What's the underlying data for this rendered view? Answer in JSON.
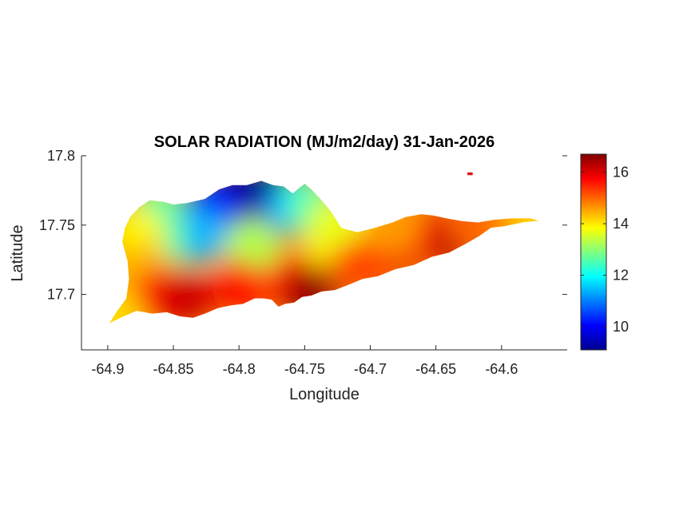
{
  "figure": {
    "title": "SOLAR RADIATION (MJ/m2/day) 31-Jan-2026"
  },
  "chart_data": {
    "type": "heatmap",
    "title": "SOLAR RADIATION (MJ/m2/day) 31-Jan-2026",
    "xlabel": "Longitude",
    "ylabel": "Latitude",
    "xlim": [
      -64.92,
      -64.55
    ],
    "ylim": [
      17.66,
      17.8
    ],
    "xticks": [
      -64.9,
      -64.85,
      -64.8,
      -64.75,
      -64.7,
      -64.65,
      -64.6
    ],
    "yticks": [
      17.7,
      17.75,
      17.8
    ],
    "xtick_labels": [
      "-64.9",
      "-64.85",
      "-64.8",
      "-64.75",
      "-64.7",
      "-64.65",
      "-64.6"
    ],
    "ytick_labels": [
      "17.7",
      "17.75",
      "17.8"
    ],
    "colormap": "jet",
    "clim": [
      9.1,
      16.7
    ],
    "colorbar_ticks": [
      10,
      12,
      14,
      16
    ],
    "colorbar_tick_labels": [
      "10",
      "12",
      "14",
      "16"
    ],
    "island_outline": [
      [
        -64.899,
        17.679
      ],
      [
        -64.893,
        17.688
      ],
      [
        -64.886,
        17.697
      ],
      [
        -64.884,
        17.711
      ],
      [
        -64.885,
        17.724
      ],
      [
        -64.889,
        17.738
      ],
      [
        -64.887,
        17.748
      ],
      [
        -64.883,
        17.756
      ],
      [
        -64.876,
        17.763
      ],
      [
        -64.868,
        17.768
      ],
      [
        -64.858,
        17.767
      ],
      [
        -64.85,
        17.765
      ],
      [
        -64.84,
        17.766
      ],
      [
        -64.826,
        17.769
      ],
      [
        -64.815,
        17.776
      ],
      [
        -64.805,
        17.779
      ],
      [
        -64.794,
        17.779
      ],
      [
        -64.783,
        17.782
      ],
      [
        -64.774,
        17.779
      ],
      [
        -64.766,
        17.778
      ],
      [
        -64.759,
        17.773
      ],
      [
        -64.754,
        17.777
      ],
      [
        -64.75,
        17.78
      ],
      [
        -64.745,
        17.776
      ],
      [
        -64.738,
        17.769
      ],
      [
        -64.73,
        17.76
      ],
      [
        -64.722,
        17.748
      ],
      [
        -64.71,
        17.745
      ],
      [
        -64.697,
        17.748
      ],
      [
        -64.683,
        17.752
      ],
      [
        -64.673,
        17.756
      ],
      [
        -64.661,
        17.758
      ],
      [
        -64.652,
        17.757
      ],
      [
        -64.642,
        17.755
      ],
      [
        -64.63,
        17.753
      ],
      [
        -64.618,
        17.752
      ],
      [
        -64.605,
        17.754
      ],
      [
        -64.592,
        17.755
      ],
      [
        -64.578,
        17.755
      ],
      [
        -64.571,
        17.753
      ],
      [
        -64.583,
        17.752
      ],
      [
        -64.598,
        17.749
      ],
      [
        -64.608,
        17.748
      ],
      [
        -64.617,
        17.742
      ],
      [
        -64.628,
        17.736
      ],
      [
        -64.64,
        17.73
      ],
      [
        -64.653,
        17.727
      ],
      [
        -64.667,
        17.721
      ],
      [
        -64.681,
        17.718
      ],
      [
        -64.694,
        17.713
      ],
      [
        -64.706,
        17.711
      ],
      [
        -64.716,
        17.707
      ],
      [
        -64.727,
        17.703
      ],
      [
        -64.737,
        17.702
      ],
      [
        -64.745,
        17.699
      ],
      [
        -64.752,
        17.698
      ],
      [
        -64.758,
        17.694
      ],
      [
        -64.765,
        17.693
      ],
      [
        -64.77,
        17.691
      ],
      [
        -64.775,
        17.696
      ],
      [
        -64.781,
        17.697
      ],
      [
        -64.788,
        17.697
      ],
      [
        -64.797,
        17.693
      ],
      [
        -64.806,
        17.692
      ],
      [
        -64.816,
        17.69
      ],
      [
        -64.826,
        17.686
      ],
      [
        -64.835,
        17.683
      ],
      [
        -64.845,
        17.684
      ],
      [
        -64.855,
        17.687
      ],
      [
        -64.866,
        17.686
      ],
      [
        -64.878,
        17.688
      ],
      [
        -64.888,
        17.684
      ]
    ],
    "offshore_islet": [
      [
        -64.626,
        17.788
      ],
      [
        -64.622,
        17.788
      ],
      [
        -64.622,
        17.786
      ],
      [
        -64.626,
        17.786
      ]
    ],
    "value_field": [
      {
        "lon": -64.8,
        "lat": 17.77,
        "value": 9.4
      },
      {
        "lon": -64.78,
        "lat": 17.772,
        "value": 9.2
      },
      {
        "lon": -64.82,
        "lat": 17.763,
        "value": 10.1
      },
      {
        "lon": -64.83,
        "lat": 17.742,
        "value": 11.4
      },
      {
        "lon": -64.76,
        "lat": 17.762,
        "value": 11.2
      },
      {
        "lon": -64.748,
        "lat": 17.766,
        "value": 12.1
      },
      {
        "lon": -64.74,
        "lat": 17.757,
        "value": 12.8
      },
      {
        "lon": -64.862,
        "lat": 17.76,
        "value": 12.6
      },
      {
        "lon": -64.86,
        "lat": 17.738,
        "value": 12.7
      },
      {
        "lon": -64.878,
        "lat": 17.744,
        "value": 13.9
      },
      {
        "lon": -64.872,
        "lat": 17.718,
        "value": 14.4
      },
      {
        "lon": -64.79,
        "lat": 17.735,
        "value": 13.3
      },
      {
        "lon": -64.73,
        "lat": 17.738,
        "value": 14.0
      },
      {
        "lon": -64.725,
        "lat": 17.75,
        "value": 13.7
      },
      {
        "lon": -64.86,
        "lat": 17.7,
        "value": 15.6
      },
      {
        "lon": -64.84,
        "lat": 17.697,
        "value": 16.1
      },
      {
        "lon": -64.8,
        "lat": 17.705,
        "value": 15.7
      },
      {
        "lon": -64.76,
        "lat": 17.708,
        "value": 15.5
      },
      {
        "lon": -64.745,
        "lat": 17.701,
        "value": 16.5
      },
      {
        "lon": -64.71,
        "lat": 17.72,
        "value": 15.2
      },
      {
        "lon": -64.69,
        "lat": 17.728,
        "value": 15.3
      },
      {
        "lon": -64.67,
        "lat": 17.737,
        "value": 15.9
      },
      {
        "lon": -64.65,
        "lat": 17.742,
        "value": 15.4
      },
      {
        "lon": -64.635,
        "lat": 17.738,
        "value": 16.2
      },
      {
        "lon": -64.62,
        "lat": 17.75,
        "value": 15.0
      },
      {
        "lon": -64.59,
        "lat": 17.753,
        "value": 14.8
      },
      {
        "lon": -64.575,
        "lat": 17.754,
        "value": 14.2
      },
      {
        "lon": -64.894,
        "lat": 17.683,
        "value": 14.1
      },
      {
        "lon": -64.683,
        "lat": 17.748,
        "value": 14.6
      },
      {
        "lon": -64.624,
        "lat": 17.787,
        "value": 16.4
      }
    ]
  }
}
